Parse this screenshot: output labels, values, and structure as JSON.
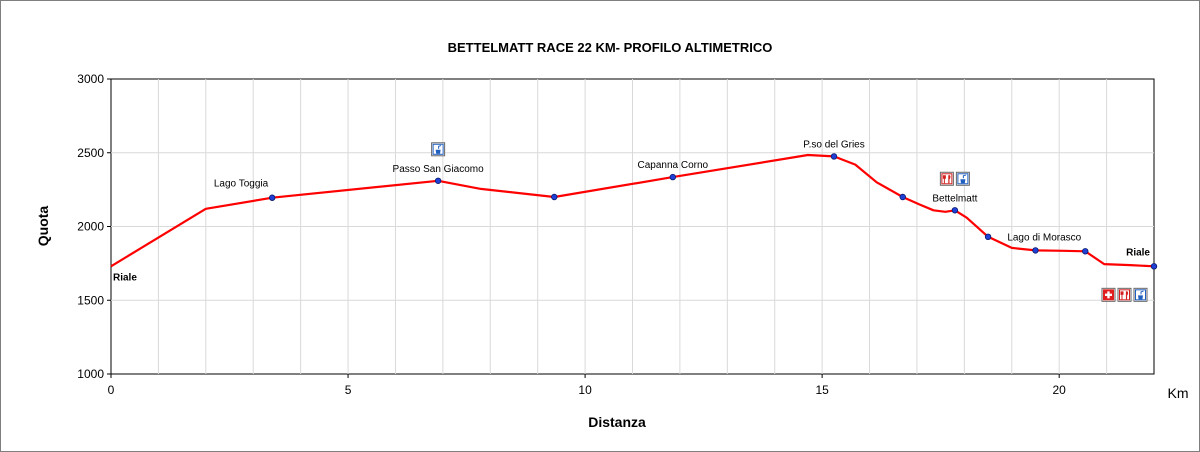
{
  "chart_data": {
    "type": "line",
    "title": "BETTELMATT RACE 22 KM- PROFILO ALTIMETRICO",
    "xlabel": "Distanza",
    "ylabel": "Quota",
    "x_unit": "Km",
    "xlim": [
      0,
      22
    ],
    "ylim": [
      1000,
      3000
    ],
    "x_ticks": [
      0,
      5,
      10,
      15,
      20
    ],
    "y_ticks": [
      1000,
      1500,
      2000,
      2500,
      3000
    ],
    "x_minor_step": 1,
    "y_major_step": 500,
    "grid": true,
    "line_color": "#ff0000",
    "marker_color": "#1f3fd6",
    "series": [
      {
        "points": [
          [
            0,
            1730
          ],
          [
            2,
            2120
          ],
          [
            3.4,
            2195
          ],
          [
            6.9,
            2310
          ],
          [
            7.8,
            2255
          ],
          [
            9.35,
            2200
          ],
          [
            11.85,
            2335
          ],
          [
            14.7,
            2485
          ],
          [
            15.25,
            2475
          ],
          [
            15.7,
            2420
          ],
          [
            16.15,
            2300
          ],
          [
            16.7,
            2200
          ],
          [
            17.05,
            2150
          ],
          [
            17.35,
            2110
          ],
          [
            17.6,
            2100
          ],
          [
            17.8,
            2110
          ],
          [
            18.05,
            2060
          ],
          [
            18.5,
            1930
          ],
          [
            19.0,
            1855
          ],
          [
            19.5,
            1838
          ],
          [
            20.1,
            1835
          ],
          [
            20.55,
            1832
          ],
          [
            20.95,
            1745
          ],
          [
            21.5,
            1738
          ],
          [
            22,
            1730
          ]
        ]
      }
    ],
    "waypoints": [
      {
        "x": 0,
        "y": 1730,
        "label": "Riale",
        "bold": true,
        "marker": false,
        "label_pos": "below-right",
        "icons": []
      },
      {
        "x": 3.4,
        "y": 2195,
        "label": "Lago Toggia",
        "bold": false,
        "marker": true,
        "label_pos": "above-left",
        "icons": []
      },
      {
        "x": 6.9,
        "y": 2310,
        "label": "Passo San Giacomo",
        "bold": false,
        "marker": true,
        "label_pos": "above",
        "icons": [
          "water-icon"
        ]
      },
      {
        "x": 9.35,
        "y": 2200,
        "label": "",
        "bold": false,
        "marker": true,
        "label_pos": "none",
        "icons": []
      },
      {
        "x": 11.85,
        "y": 2335,
        "label": "Capanna Corno",
        "bold": false,
        "marker": true,
        "label_pos": "above",
        "icons": []
      },
      {
        "x": 15.25,
        "y": 2475,
        "label": "P.so del Gries",
        "bold": false,
        "marker": true,
        "label_pos": "above",
        "icons": []
      },
      {
        "x": 16.7,
        "y": 2200,
        "label": "",
        "bold": false,
        "marker": true,
        "label_pos": "none",
        "icons": []
      },
      {
        "x": 17.8,
        "y": 2110,
        "label": "Bettelmatt",
        "bold": false,
        "marker": true,
        "label_pos": "above",
        "icons": [
          "food-icon",
          "water-icon"
        ]
      },
      {
        "x": 18.5,
        "y": 1930,
        "label": "",
        "bold": false,
        "marker": true,
        "label_pos": "none",
        "icons": []
      },
      {
        "x": 19.5,
        "y": 1838,
        "label": "",
        "bold": false,
        "marker": true,
        "label_pos": "none",
        "icons": []
      },
      {
        "x": 20.55,
        "y": 1832,
        "label": "Lago di Morasco",
        "bold": false,
        "marker": true,
        "label_pos": "above-left",
        "icons": []
      },
      {
        "x": 22,
        "y": 1730,
        "label": "Riale",
        "bold": true,
        "marker": true,
        "label_pos": "above-left",
        "icons": [
          "first-aid-icon",
          "food-icon",
          "water-icon"
        ]
      }
    ]
  }
}
